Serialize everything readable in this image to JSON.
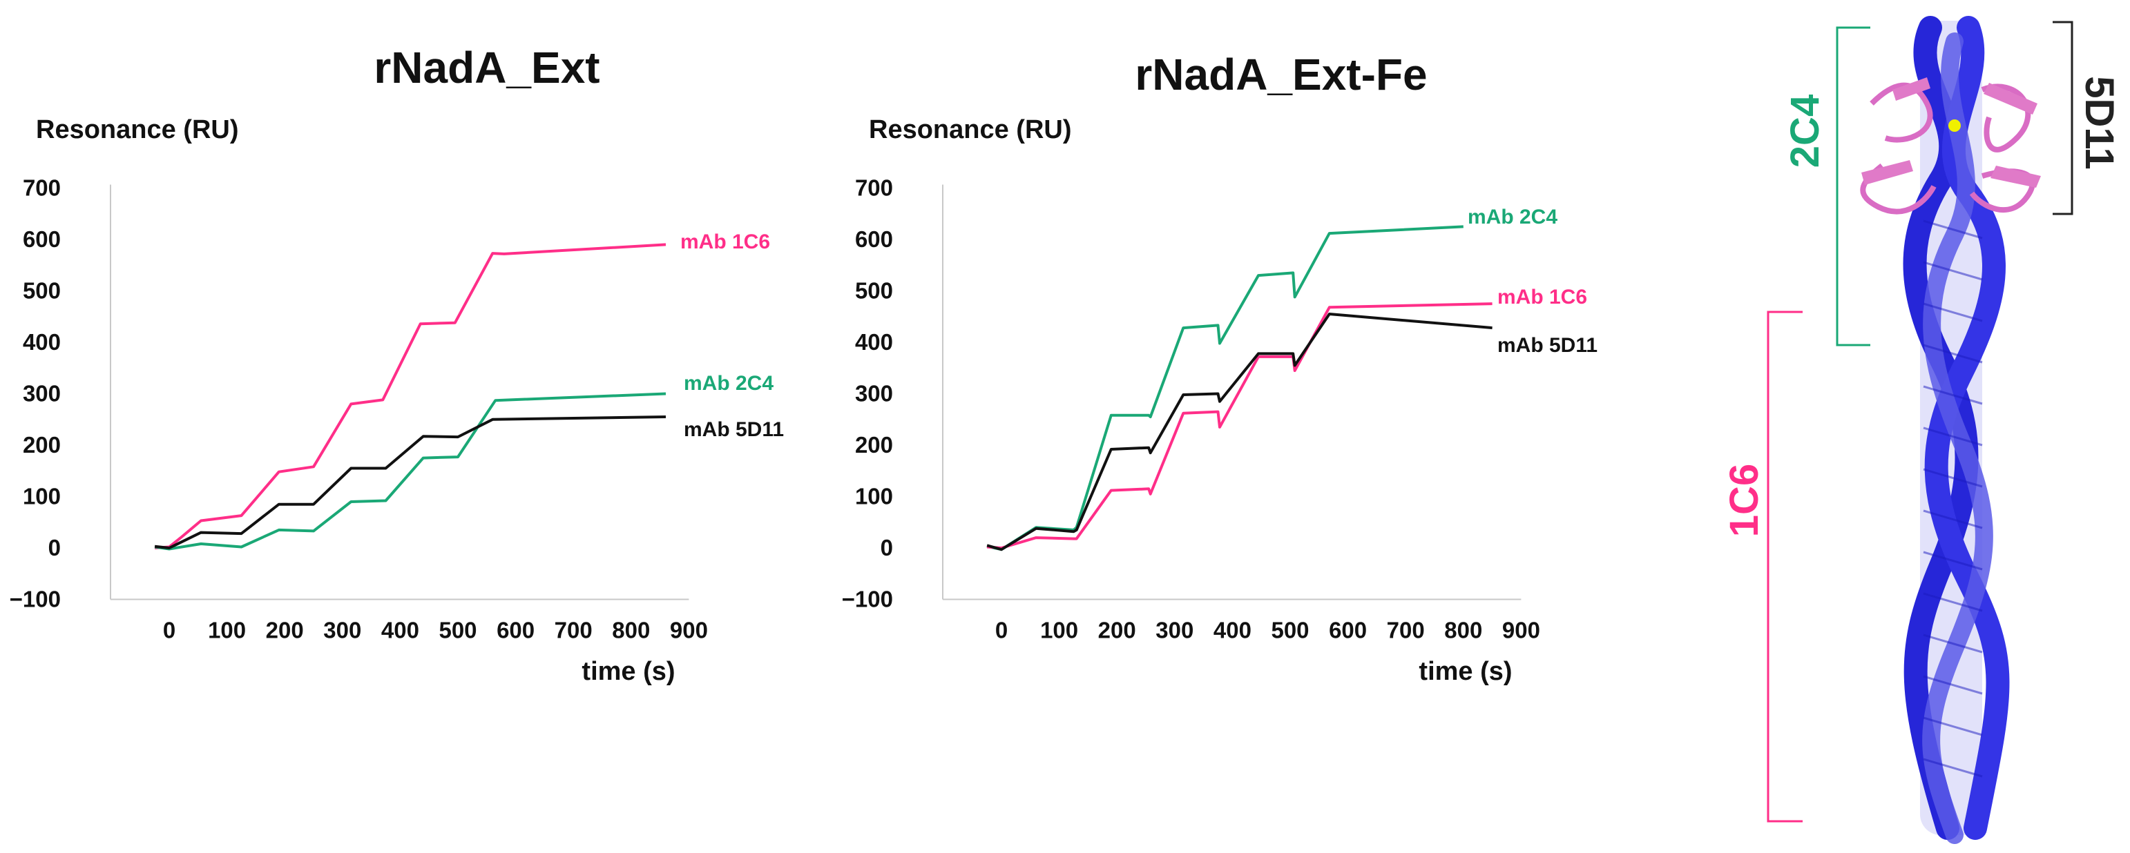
{
  "chart_data": [
    {
      "type": "line",
      "title": "rNadA_Ext",
      "ylabel": "Resonance (RU)",
      "xlabel": "time (s)",
      "xlim": [
        -60,
        900
      ],
      "ylim": [
        -100,
        700
      ],
      "xticks": [
        0,
        100,
        200,
        300,
        400,
        500,
        600,
        700,
        800,
        900
      ],
      "yticks": [
        -100,
        0,
        100,
        200,
        300,
        400,
        500,
        600,
        700
      ],
      "xtick_labels": [
        "0",
        "100",
        "200",
        "300",
        "400",
        "500",
        "600",
        "700",
        "800",
        "900"
      ],
      "ytick_labels": [
        "−100",
        "0",
        "100",
        "200",
        "300",
        "400",
        "500",
        "600",
        "700"
      ],
      "grid": false,
      "series": [
        {
          "name": "mAb 1C6",
          "color": "#ff2e88",
          "points": [
            [
              -25,
              0
            ],
            [
              0,
              2
            ],
            [
              20,
              20
            ],
            [
              55,
              53
            ],
            [
              125,
              63
            ],
            [
              190,
              148
            ],
            [
              250,
              158
            ],
            [
              315,
              280
            ],
            [
              370,
              288
            ],
            [
              435,
              436
            ],
            [
              495,
              438
            ],
            [
              560,
              573
            ],
            [
              580,
              572
            ],
            [
              860,
              590
            ]
          ]
        },
        {
          "name": "mAb 2C4",
          "color": "#1aa876",
          "points": [
            [
              -25,
              2
            ],
            [
              0,
              -2
            ],
            [
              55,
              8
            ],
            [
              125,
              2
            ],
            [
              190,
              35
            ],
            [
              250,
              33
            ],
            [
              315,
              90
            ],
            [
              375,
              92
            ],
            [
              440,
              175
            ],
            [
              500,
              177
            ],
            [
              565,
              287
            ],
            [
              860,
              300
            ]
          ]
        },
        {
          "name": "mAb 5D11",
          "color": "#111111",
          "points": [
            [
              -25,
              3
            ],
            [
              0,
              0
            ],
            [
              55,
              30
            ],
            [
              125,
              28
            ],
            [
              190,
              85
            ],
            [
              250,
              85
            ],
            [
              315,
              155
            ],
            [
              375,
              155
            ],
            [
              440,
              217
            ],
            [
              500,
              216
            ],
            [
              560,
              250
            ],
            [
              860,
              255
            ]
          ]
        }
      ]
    },
    {
      "type": "line",
      "title": "rNadA_Ext-Fe",
      "ylabel": "Resonance (RU)",
      "xlabel": "time (s)",
      "xlim": [
        -60,
        900
      ],
      "ylim": [
        -100,
        700
      ],
      "xticks": [
        0,
        100,
        200,
        300,
        400,
        500,
        600,
        700,
        800,
        900
      ],
      "yticks": [
        -100,
        0,
        100,
        200,
        300,
        400,
        500,
        600,
        700
      ],
      "xtick_labels": [
        "0",
        "100",
        "200",
        "300",
        "400",
        "500",
        "600",
        "700",
        "800",
        "900"
      ],
      "ytick_labels": [
        "−100",
        "0",
        "100",
        "200",
        "300",
        "400",
        "500",
        "600",
        "700"
      ],
      "grid": false,
      "series": [
        {
          "name": "mAb 2C4",
          "color": "#1aa876",
          "points": [
            [
              -25,
              3
            ],
            [
              0,
              -3
            ],
            [
              60,
              40
            ],
            [
              125,
              35
            ],
            [
              130,
              40
            ],
            [
              190,
              258
            ],
            [
              255,
              258
            ],
            [
              258,
              255
            ],
            [
              315,
              428
            ],
            [
              375,
              433
            ],
            [
              378,
              398
            ],
            [
              445,
              530
            ],
            [
              505,
              535
            ],
            [
              508,
              488
            ],
            [
              568,
              612
            ],
            [
              800,
              625
            ]
          ]
        },
        {
          "name": "mAb 1C6",
          "color": "#ff2e88",
          "points": [
            [
              -25,
              2
            ],
            [
              0,
              0
            ],
            [
              60,
              20
            ],
            [
              125,
              18
            ],
            [
              130,
              18
            ],
            [
              190,
              112
            ],
            [
              255,
              115
            ],
            [
              258,
              105
            ],
            [
              315,
              262
            ],
            [
              375,
              265
            ],
            [
              378,
              235
            ],
            [
              445,
              372
            ],
            [
              505,
              372
            ],
            [
              508,
              345
            ],
            [
              568,
              468
            ],
            [
              850,
              475
            ]
          ]
        },
        {
          "name": "mAb 5D11",
          "color": "#111111",
          "points": [
            [
              -25,
              5
            ],
            [
              0,
              -3
            ],
            [
              60,
              38
            ],
            [
              125,
              32
            ],
            [
              130,
              35
            ],
            [
              190,
              192
            ],
            [
              255,
              195
            ],
            [
              258,
              185
            ],
            [
              315,
              298
            ],
            [
              375,
              300
            ],
            [
              378,
              285
            ],
            [
              445,
              378
            ],
            [
              505,
              378
            ],
            [
              508,
              355
            ],
            [
              568,
              455
            ],
            [
              850,
              428
            ]
          ]
        }
      ]
    }
  ],
  "structure": {
    "labels": [
      "2C4",
      "5D11",
      "1C6"
    ],
    "colors": {
      "2C4": "#1aa876",
      "5D11": "#222222",
      "1C6": "#ff2e88",
      "helix": "#2a2ae0",
      "helix_light": "#6a6ae8",
      "loop": "#e070c8",
      "metal": "#f0f000"
    }
  }
}
